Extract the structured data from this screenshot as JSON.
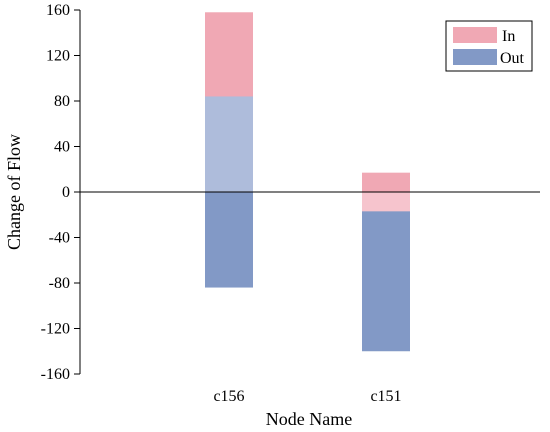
{
  "chart_data": {
    "type": "bar",
    "stacked": true,
    "orientation": "vertical",
    "categories": [
      "c156",
      "c151"
    ],
    "xlabel": "Node Name",
    "ylabel": "Change of Flow",
    "ylim": [
      -160,
      160
    ],
    "yticks": [
      160,
      120,
      80,
      40,
      0,
      -40,
      -80,
      -120,
      -160
    ],
    "ytick_labels": [
      "160",
      "120",
      "80",
      "40",
      "0",
      "-40",
      "-80",
      "-120",
      "-160"
    ],
    "grid": false,
    "legend": {
      "position": "top-right",
      "entries": [
        "In",
        "Out"
      ]
    },
    "series": [
      {
        "name": "In",
        "color": "#f0a8b4",
        "values": [
          158,
          17
        ]
      },
      {
        "name": "Out",
        "color": "#8299c6",
        "values": [
          -84,
          -140
        ]
      }
    ],
    "overlap_segments": [
      {
        "category": "c156",
        "from": 0,
        "to": 84,
        "color": "#aebcdb"
      },
      {
        "category": "c151",
        "from": -17,
        "to": 0,
        "color": "#f6c4cd"
      }
    ]
  }
}
